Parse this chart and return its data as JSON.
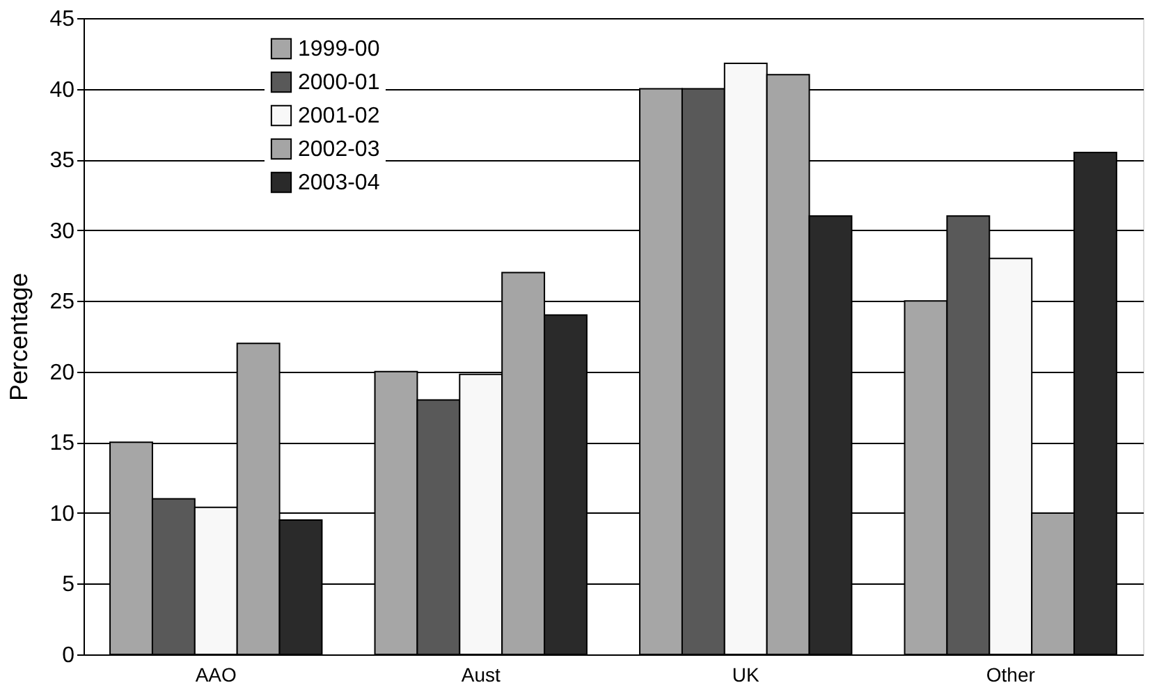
{
  "chart_data": {
    "type": "bar",
    "ylabel": "Percentage",
    "categories": [
      "AAO",
      "Aust",
      "UK",
      "Other"
    ],
    "series": [
      {
        "name": "1999-00",
        "color": "#a6a6a6",
        "values": [
          15,
          20,
          40,
          25
        ]
      },
      {
        "name": "2000-01",
        "color": "#595959",
        "values": [
          11,
          18,
          40,
          31
        ]
      },
      {
        "name": "2001-02",
        "color": "#f8f8f8",
        "values": [
          10.4,
          19.8,
          41.8,
          28
        ]
      },
      {
        "name": "2002-03",
        "color": "#a5a5a5",
        "values": [
          22,
          27,
          41,
          10
        ]
      },
      {
        "name": "2003-04",
        "color": "#2a2a2a",
        "values": [
          9.5,
          24,
          31,
          35.5
        ]
      }
    ],
    "ylim": [
      0,
      45
    ],
    "yticks": [
      0,
      5,
      10,
      15,
      20,
      25,
      30,
      35,
      40,
      45
    ],
    "grid": "y",
    "legend": "top left"
  }
}
